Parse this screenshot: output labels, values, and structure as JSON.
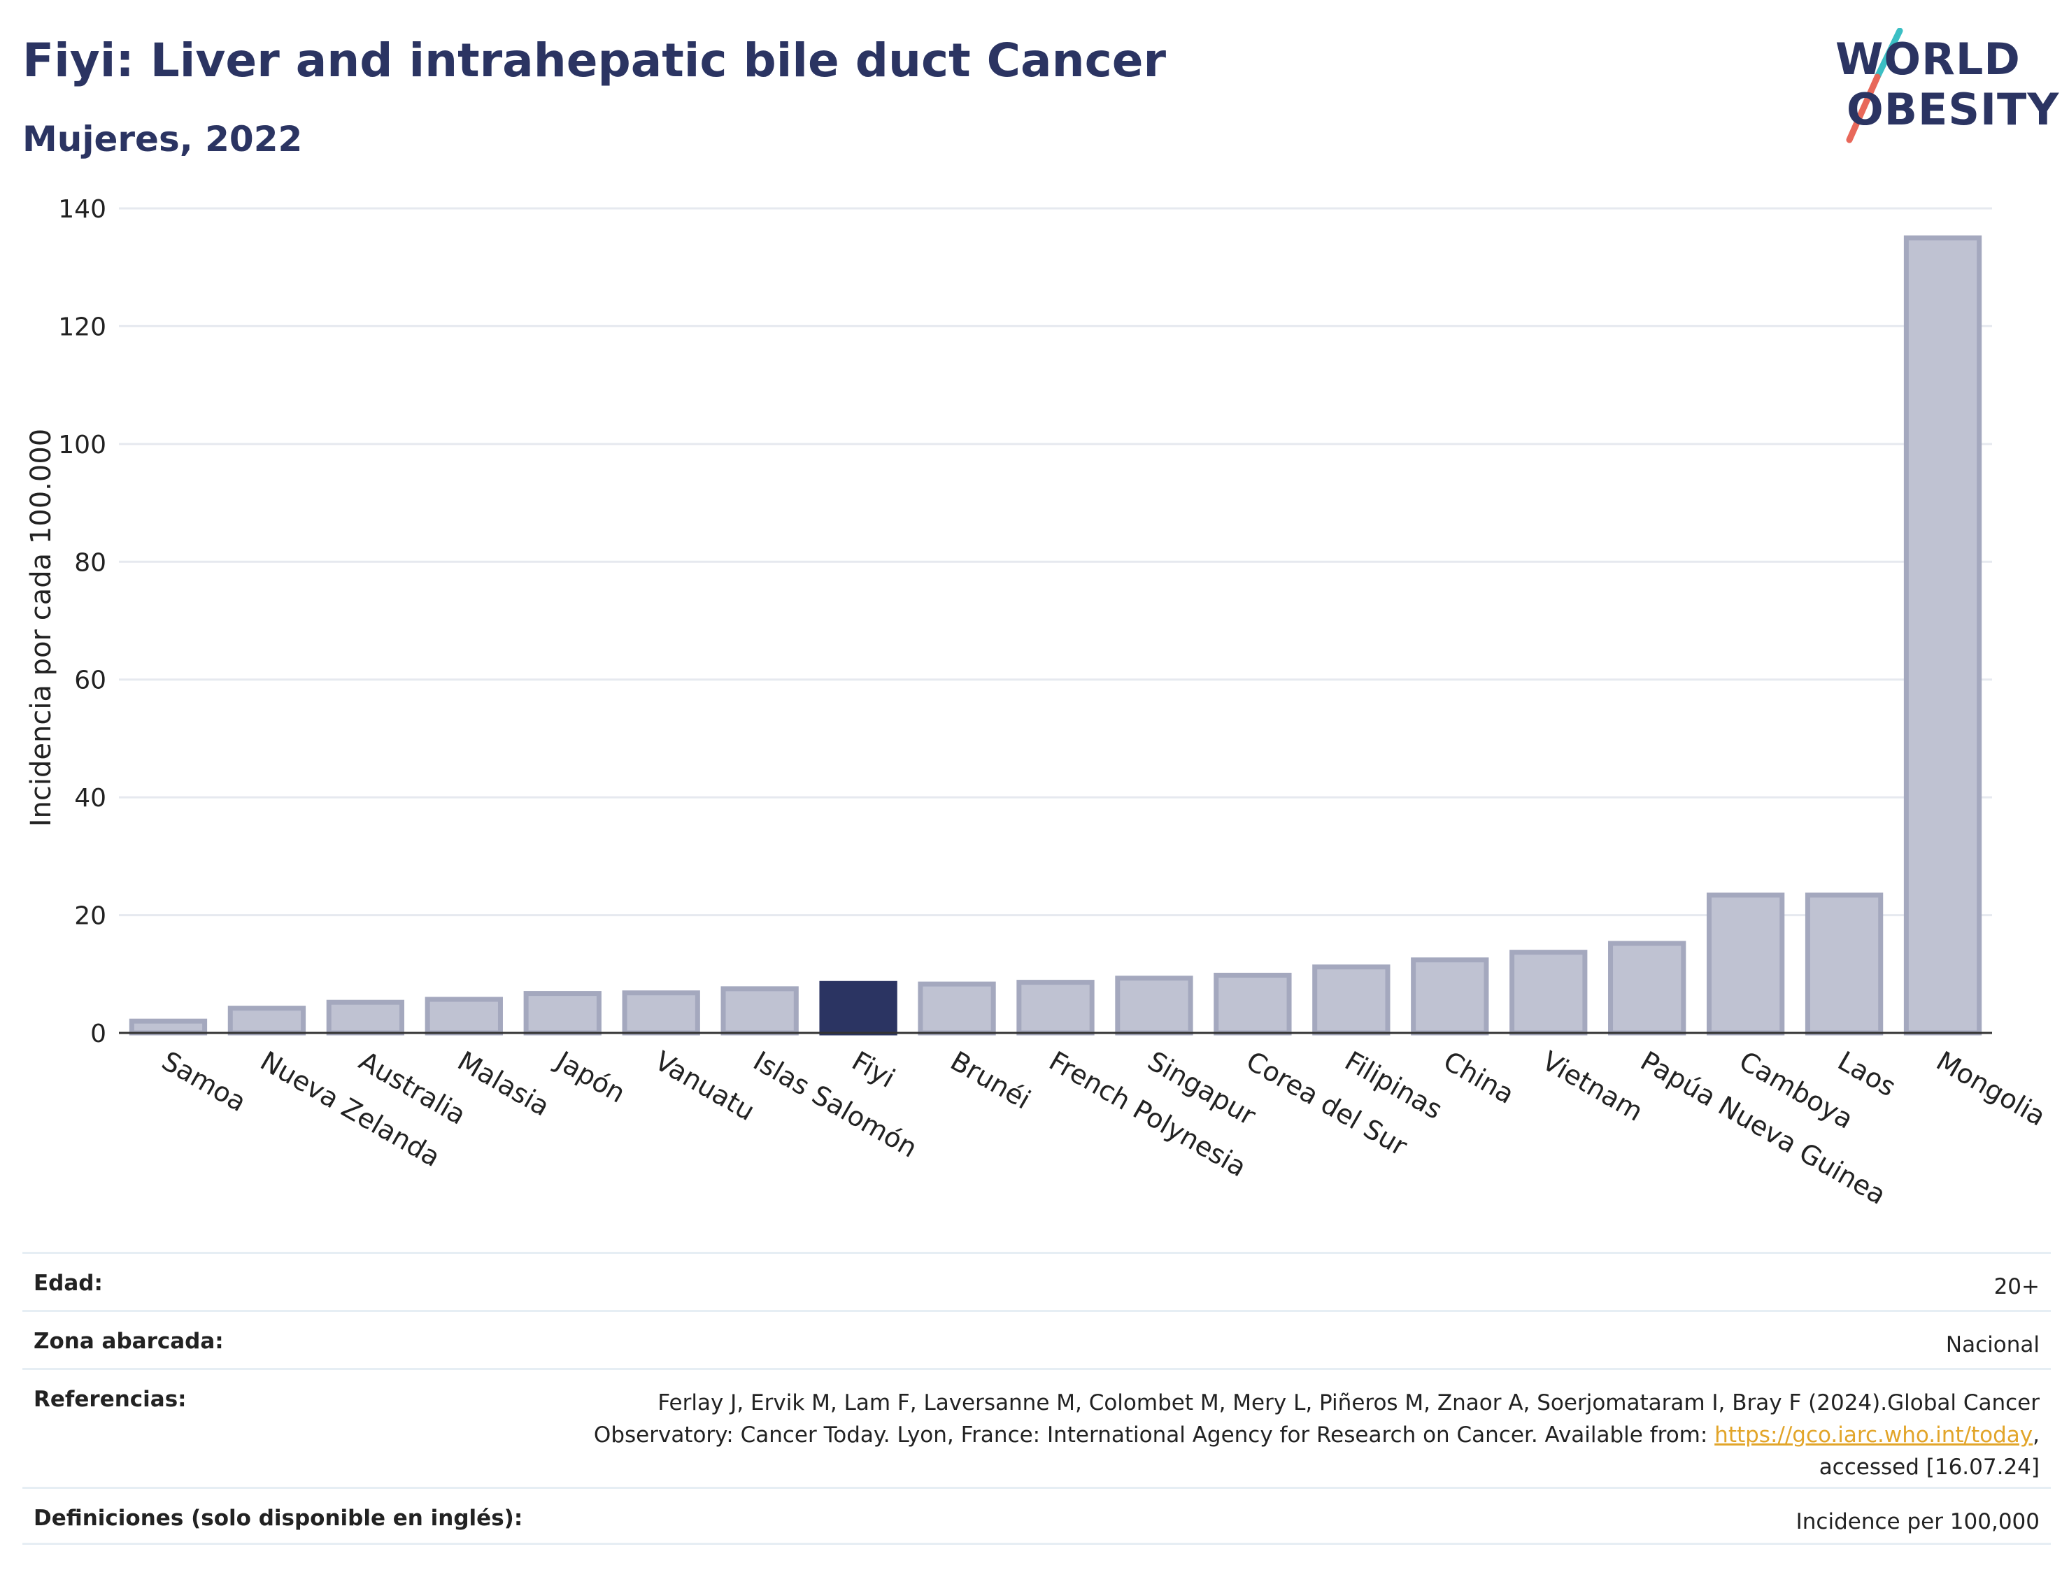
{
  "header": {
    "title": "Fiyi: Liver and intrahepatic bile duct Cancer",
    "subtitle": "Mujeres, 2022"
  },
  "logo": {
    "line1": "WORLD",
    "line2": "OBESITY",
    "colors": {
      "text": "#2b3462",
      "slash_top": "#3bbfc4",
      "slash_bottom": "#e8685a"
    }
  },
  "colors": {
    "bar_default_fill": "#bfc2d2",
    "bar_default_stroke": "#a4a8be",
    "bar_highlight": "#2b3462",
    "grid": "#e6e9ef",
    "axis": "#333333"
  },
  "chart_data": {
    "type": "bar",
    "ylabel": "Incidencia por cada 100.000",
    "xlabel": "",
    "ylim": [
      0,
      140
    ],
    "yticks": [
      0,
      20,
      40,
      60,
      80,
      100,
      120,
      140
    ],
    "grid": true,
    "highlight": "Fiyi",
    "categories": [
      "Samoa",
      "Nueva Zelanda",
      "Australia",
      "Malasia",
      "Japón",
      "Vanuatu",
      "Islas Salomón",
      "Fiyi",
      "Brunéi",
      "French Polynesia",
      "Singapur",
      "Corea del Sur",
      "Filipinas",
      "China",
      "Vietnam",
      "Papúa Nueva Guinea",
      "Camboya",
      "Laos",
      "Mongolia"
    ],
    "values": [
      2.0,
      4.2,
      5.2,
      5.7,
      6.7,
      6.8,
      7.5,
      8.4,
      8.3,
      8.6,
      9.3,
      9.8,
      11.2,
      12.4,
      13.7,
      15.2,
      23.4,
      23.4,
      135.0
    ]
  },
  "meta": {
    "rows": [
      {
        "label": "Edad:",
        "value": "20+"
      },
      {
        "label": "Zona abarcada:",
        "value": "Nacional"
      },
      {
        "label": "Referencias:",
        "value_part1": "Ferlay J, Ervik M, Lam F, Laversanne M, Colombet M, Mery L, Piñeros M, Znaor A, Soerjomataram I, Bray F (2024).Global Cancer Observatory: Cancer Today. Lyon, France: International Agency for Research on Cancer. Available from:",
        "link": "https://gco.iarc.who.int/today",
        "value_part2": ", accessed [16.07.24]"
      },
      {
        "label": "Definiciones (solo disponible en inglés):",
        "value": "Incidence per 100,000"
      }
    ]
  }
}
